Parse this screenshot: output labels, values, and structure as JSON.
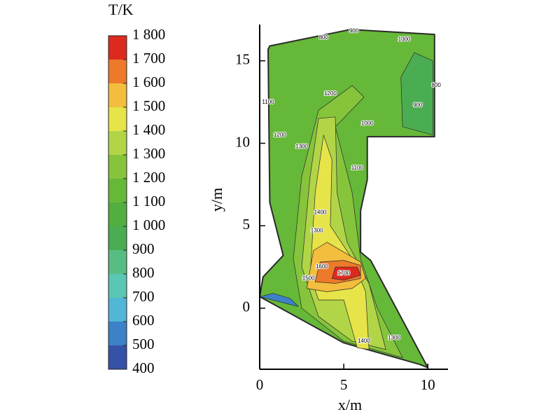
{
  "chart_data": {
    "type": "contour",
    "colorbar_title": "T/K",
    "xlabel": "x/m",
    "ylabel": "y/m",
    "xlim": [
      0,
      11.2
    ],
    "ylim": [
      -3.7,
      17.2
    ],
    "xticks": [
      0,
      5,
      10
    ],
    "yticks": [
      0,
      5,
      10,
      15
    ],
    "clim": [
      400,
      1800
    ],
    "cticks": [
      400,
      500,
      600,
      700,
      800,
      900,
      {
        "value": 1000,
        "label": "1 000"
      },
      {
        "value": 1100,
        "label": "1 100"
      },
      {
        "value": 1200,
        "label": "1 200"
      },
      {
        "value": 1300,
        "label": "1 300"
      },
      {
        "value": 1400,
        "label": "1 400"
      },
      {
        "value": 1500,
        "label": "1 500"
      },
      {
        "value": 1600,
        "label": "1 600"
      },
      {
        "value": 1700,
        "label": "1 700"
      },
      {
        "value": 1800,
        "label": "1 800"
      }
    ],
    "colors": [
      "#3552a8",
      "#3d82c8",
      "#52b6d6",
      "#5ac7b4",
      "#58bd84",
      "#4aad52",
      "#52ae3e",
      "#66b838",
      "#86c43c",
      "#b2d548",
      "#e6e448",
      "#f3bd3e",
      "#ec7a2a",
      "#dc2a1f"
    ],
    "domain": {
      "value": 1100,
      "x": [
        0,
        0.2,
        1.4,
        0.6,
        0.5,
        0.6,
        5.4,
        10.4,
        10.4,
        6.4,
        6.4,
        6.0,
        6.0,
        6.6,
        10.0,
        9.5,
        5.0,
        0
      ],
      "y": [
        0.7,
        1.9,
        3.2,
        6.4,
        15.7,
        15.9,
        16.9,
        16.6,
        10.4,
        10.4,
        7.8,
        5.9,
        3.4,
        2.9,
        -3.6,
        -3.4,
        -2.1,
        0.7
      ]
    },
    "regions": [
      {
        "value": 1200,
        "x": [
          2.0,
          2.5,
          3.5,
          5.5,
          6.2,
          4.5,
          5.5,
          6.0,
          7.0,
          8.5,
          5.0,
          2.5
        ],
        "y": [
          3.0,
          8.0,
          12.0,
          13.5,
          12.8,
          11.0,
          7.0,
          3.0,
          0.0,
          -3.0,
          -2.0,
          0.0
        ]
      },
      {
        "value": 1300,
        "x": [
          2.5,
          3.0,
          3.5,
          4.5,
          4.6,
          5.2,
          6.5,
          7.5,
          5.5,
          3.5
        ],
        "y": [
          2.5,
          8.0,
          11.5,
          11.6,
          7.0,
          4.0,
          1.5,
          -2.5,
          -2.0,
          -0.5
        ]
      },
      {
        "value": 1400,
        "x": [
          3.0,
          3.3,
          3.8,
          4.3,
          4.2,
          5.5,
          6.3,
          6.5,
          5.8,
          5.0,
          3.5
        ],
        "y": [
          2.0,
          7.0,
          10.5,
          9.0,
          5.0,
          3.0,
          1.0,
          -2.5,
          -2.4,
          0.5,
          0.5
        ]
      },
      {
        "value": 1500,
        "x": [
          2.8,
          3.2,
          4.0,
          5.0,
          6.0,
          6.3,
          5.5,
          4.0
        ],
        "y": [
          1.2,
          3.5,
          4.0,
          3.4,
          2.8,
          1.8,
          1.2,
          1.0
        ]
      },
      {
        "value": 1600,
        "x": [
          3.3,
          3.6,
          5.0,
          6.0,
          6.0,
          4.5
        ],
        "y": [
          1.6,
          2.8,
          2.9,
          2.6,
          1.8,
          1.5
        ]
      },
      {
        "value": 1700,
        "x": [
          4.3,
          4.5,
          5.8,
          6.0,
          5.0
        ],
        "y": [
          1.8,
          2.5,
          2.5,
          2.0,
          1.7
        ]
      },
      {
        "value": 900,
        "x": [
          8.5,
          8.4,
          9.2,
          10.3,
          10.3
        ],
        "y": [
          11.0,
          14.0,
          15.5,
          15.0,
          10.5
        ]
      },
      {
        "value": 500,
        "x": [
          0,
          2.3,
          1.8,
          0.8
        ],
        "y": [
          0.7,
          0.1,
          0.6,
          0.9
        ]
      }
    ],
    "contour_labels": [
      {
        "label": "1700",
        "x": 5.0,
        "y": 2.1
      },
      {
        "label": "1600",
        "x": 3.7,
        "y": 2.5
      },
      {
        "label": "1500",
        "x": 2.9,
        "y": 1.8
      },
      {
        "label": "1400",
        "x": 3.6,
        "y": 5.8
      },
      {
        "label": "1300",
        "x": 3.4,
        "y": 4.7
      },
      {
        "label": "1300",
        "x": 2.5,
        "y": 9.8
      },
      {
        "label": "1200",
        "x": 4.2,
        "y": 13.0
      },
      {
        "label": "1100",
        "x": 5.8,
        "y": 8.5
      },
      {
        "label": "1000",
        "x": 6.4,
        "y": 11.2
      },
      {
        "label": "900",
        "x": 9.4,
        "y": 12.3
      },
      {
        "label": "800",
        "x": 10.5,
        "y": 13.5
      },
      {
        "label": "800",
        "x": 3.8,
        "y": 16.4
      },
      {
        "label": "900",
        "x": 5.6,
        "y": 16.8
      },
      {
        "label": "1000",
        "x": 8.6,
        "y": 16.3
      },
      {
        "label": "1400",
        "x": 6.2,
        "y": -2.0
      },
      {
        "label": "1300",
        "x": 8.0,
        "y": -1.8
      },
      {
        "label": "1200",
        "x": 1.2,
        "y": 10.5
      },
      {
        "label": "1100",
        "x": 0.5,
        "y": 12.5
      }
    ]
  }
}
